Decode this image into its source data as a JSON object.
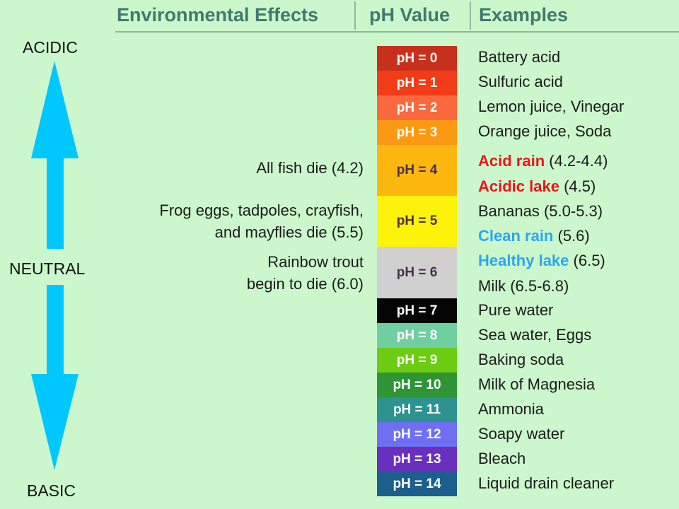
{
  "header": {
    "col_effects": "Environmental Effects",
    "col_ph": "pH Value",
    "col_examples": "Examples"
  },
  "axis": {
    "acidic": "ACIDIC",
    "neutral": "NEUTRAL",
    "basic": "BASIC",
    "arrow_color": "#00c8ff"
  },
  "effects": [
    {
      "lines": [
        "All fish die (4.2)"
      ]
    },
    {
      "lines": [
        "Frog eggs, tadpoles, crayfish,",
        "and mayflies die (5.5)"
      ]
    },
    {
      "lines": [
        "Rainbow trout",
        "begin to die (6.0)"
      ]
    }
  ],
  "ph_scale": [
    {
      "label": "pH = 0",
      "color": "#c8301e"
    },
    {
      "label": "pH = 1",
      "color": "#f23c17"
    },
    {
      "label": "pH = 2",
      "color": "#f9693d"
    },
    {
      "label": "pH = 3",
      "color": "#fb9a12"
    },
    {
      "label": "pH = 4",
      "color": "#fcb80f"
    },
    {
      "label": "pH = 5",
      "color": "#fcf20a"
    },
    {
      "label": "pH = 6",
      "color": "#d0d0d0"
    },
    {
      "label": "pH = 7",
      "color": "#050505"
    },
    {
      "label": "pH = 8",
      "color": "#6fcfa1"
    },
    {
      "label": "pH = 9",
      "color": "#6ccb13"
    },
    {
      "label": "pH = 10",
      "color": "#2e9435"
    },
    {
      "label": "pH = 11",
      "color": "#2d9290"
    },
    {
      "label": "pH = 12",
      "color": "#6f6ff3"
    },
    {
      "label": "pH = 13",
      "color": "#6a30bd"
    },
    {
      "label": "pH = 14",
      "color": "#1d5f8c"
    }
  ],
  "examples": [
    {
      "text": "Battery acid"
    },
    {
      "text": "Sulfuric acid"
    },
    {
      "text": "Lemon juice, Vinegar"
    },
    {
      "text": "Orange juice, Soda"
    },
    {
      "highlight": "Acid rain",
      "rest": " (4.2-4.4)",
      "color": "#e8161a"
    },
    {
      "highlight": "Acidic lake",
      "rest": " (4.5)",
      "color": "#e8161a"
    },
    {
      "text": "Bananas (5.0-5.3)"
    },
    {
      "highlight": "Clean rain",
      "rest": " (5.6)",
      "color": "#2ba6f0"
    },
    {
      "highlight": "Healthy lake",
      "rest": " (6.5)",
      "color": "#2ba6f0"
    },
    {
      "text": "Milk (6.5-6.8)"
    },
    {
      "text": "Pure water"
    },
    {
      "text": "Sea water, Eggs"
    },
    {
      "text": "Baking soda"
    },
    {
      "text": "Milk of Magnesia"
    },
    {
      "text": "Ammonia"
    },
    {
      "text": "Soapy water"
    },
    {
      "text": "Bleach"
    },
    {
      "text": "Liquid drain cleaner"
    }
  ]
}
